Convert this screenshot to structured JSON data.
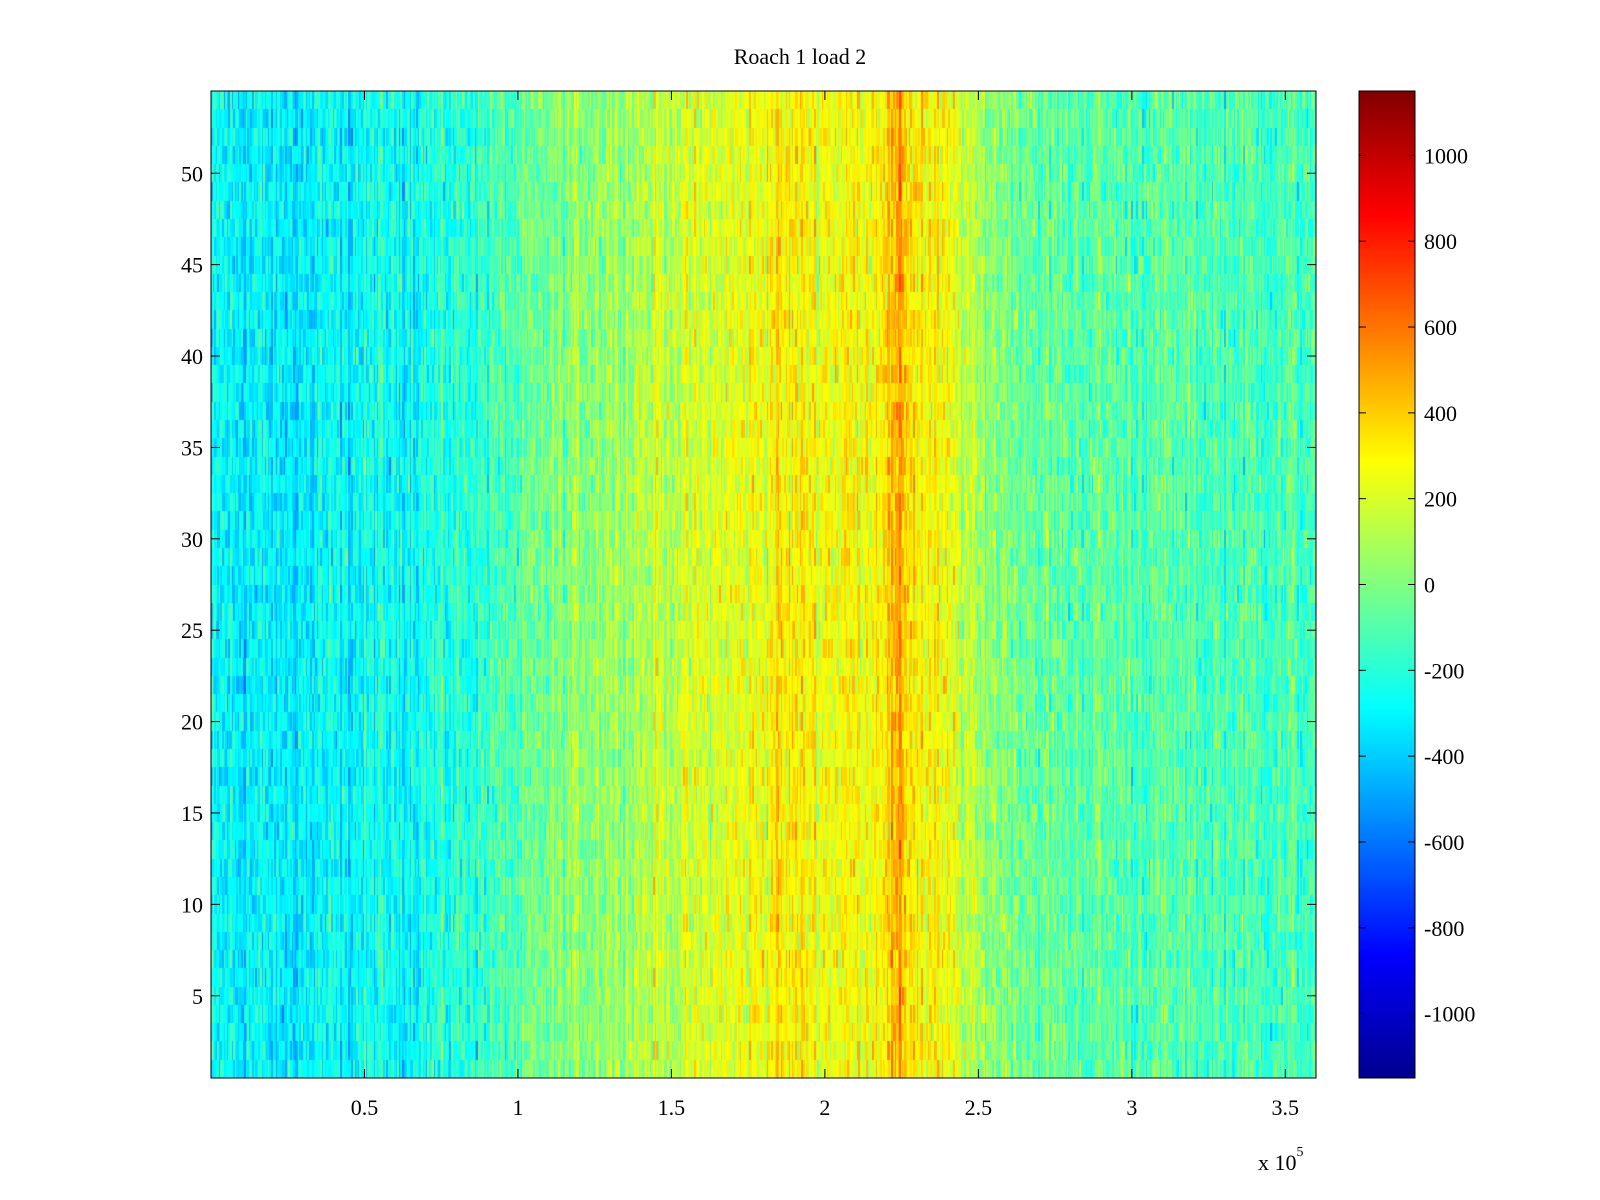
{
  "chart_data": {
    "type": "heatmap",
    "title": "Roach 1 load 2",
    "xlabel": "",
    "ylabel": "",
    "x_tick_labels": [
      "0.5",
      "1",
      "1.5",
      "2",
      "2.5",
      "3",
      "3.5"
    ],
    "x_ticks": [
      0.5,
      1,
      1.5,
      2,
      2.5,
      3,
      3.5
    ],
    "x_exponent": "x 10",
    "x_exponent_power": "5",
    "xlim": [
      0.0,
      3.6
    ],
    "y_tick_labels": [
      "5",
      "10",
      "15",
      "20",
      "25",
      "30",
      "35",
      "40",
      "45",
      "50"
    ],
    "y_ticks": [
      5,
      10,
      15,
      20,
      25,
      30,
      35,
      40,
      45,
      50
    ],
    "ylim": [
      0.5,
      54.5
    ],
    "rows": 54,
    "colormap": "jet",
    "colorbar": {
      "range": [
        -1150,
        1150
      ],
      "tick_labels": [
        "1000",
        "800",
        "600",
        "400",
        "200",
        "0",
        "-200",
        "-400",
        "-600",
        "-800",
        "-1000"
      ],
      "ticks": [
        1000,
        800,
        600,
        400,
        200,
        0,
        -200,
        -400,
        -600,
        -800,
        -1000
      ]
    },
    "column_profile": {
      "x": [
        0.0,
        0.25,
        0.5,
        0.75,
        1.0,
        1.25,
        1.5,
        1.75,
        1.85,
        2.0,
        2.15,
        2.25,
        2.3,
        2.4,
        2.5,
        2.75,
        3.0,
        3.25,
        3.6
      ],
      "mean_value": [
        -300,
        -320,
        -280,
        -230,
        -100,
        60,
        150,
        230,
        330,
        260,
        300,
        450,
        330,
        240,
        60,
        -70,
        -90,
        -110,
        -120
      ]
    },
    "grid": false,
    "legend": ""
  }
}
